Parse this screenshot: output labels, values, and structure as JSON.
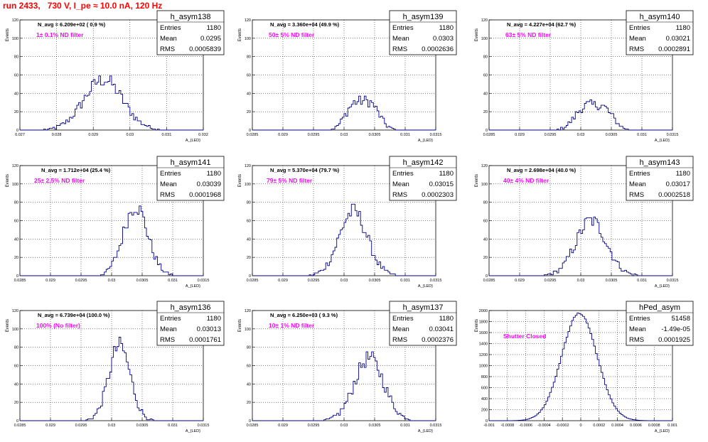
{
  "page": {
    "title": "run 2433,   730 V, I_pe ≈ 10.0 nA, 120 Hz"
  },
  "stats_labels": {
    "entries": "Entries",
    "mean": "Mean",
    "rms": "RMS"
  },
  "axis_labels": {
    "y": "Events",
    "x": "A_{LED}"
  },
  "chart_data": [
    {
      "type": "bar",
      "name": "h_asym138",
      "navg": "N_avg = 6.209e+02 ( 0.9 %)",
      "filter": "1± 0.1% ND filter",
      "entries": "1180",
      "mean": "0.0295",
      "rms": "0.0005839",
      "xlim": [
        0.027,
        0.0325
      ],
      "ylim": [
        0,
        120
      ],
      "xticks": [
        "0.027",
        "0.028",
        "0.029",
        "0.03",
        "0.031",
        "0.032"
      ],
      "yticks": [
        "0",
        "20",
        "40",
        "60",
        "80",
        "100",
        "120"
      ],
      "hmean": 0.0295,
      "hsigma": 0.00058,
      "hpeak": 55,
      "hcount": 1180,
      "bimodal": false
    },
    {
      "type": "bar",
      "name": "h_asym139",
      "navg": "N_avg = 3.360e+04 (49.9 %)",
      "filter": "50± 5% ND filter",
      "entries": "1180",
      "mean": "0.0303",
      "rms": "0.0002636",
      "xlim": [
        0.0285,
        0.0315
      ],
      "ylim": [
        0,
        120
      ],
      "xticks": [
        "0.0285",
        "0.029",
        "0.0295",
        "0.03",
        "0.0305",
        "0.031",
        "0.0315"
      ],
      "yticks": [
        "0",
        "20",
        "40",
        "60",
        "80",
        "100",
        "120"
      ],
      "hmean": 0.0303,
      "hsigma": 0.00026,
      "hpeak": 52,
      "hcount": 1180,
      "bimodal": true
    },
    {
      "type": "bar",
      "name": "h_asym140",
      "navg": "N_avg = 4.227e+04 (62.7 %)",
      "filter": "63± 5% ND filter",
      "entries": "1180",
      "mean": "0.03021",
      "rms": "0.0002891",
      "xlim": [
        0.0285,
        0.0315
      ],
      "ylim": [
        0,
        120
      ],
      "xticks": [
        "0.0285",
        "0.029",
        "0.0295",
        "0.03",
        "0.0305",
        "0.031",
        "0.0315"
      ],
      "yticks": [
        "0",
        "20",
        "40",
        "60",
        "80",
        "100",
        "120"
      ],
      "hmean": 0.03021,
      "hsigma": 0.00029,
      "hpeak": 45,
      "hcount": 1180,
      "bimodal": true
    },
    {
      "type": "bar",
      "name": "h_asym141",
      "navg": "N_avg = 1.712e+04 (25.4 %)",
      "filter": "25± 2.5% ND filter",
      "entries": "1180",
      "mean": "0.03039",
      "rms": "0.0001968",
      "xlim": [
        0.0285,
        0.0315
      ],
      "ylim": [
        0,
        120
      ],
      "xticks": [
        "0.0285",
        "0.029",
        "0.0295",
        "0.03",
        "0.0305",
        "0.031",
        "0.0315"
      ],
      "yticks": [
        "0",
        "20",
        "40",
        "60",
        "80",
        "100",
        "120"
      ],
      "hmean": 0.03039,
      "hsigma": 0.0002,
      "hpeak": 76,
      "hcount": 1180,
      "bimodal": false
    },
    {
      "type": "bar",
      "name": "h_asym142",
      "navg": "N_avg = 5.370e+04 (79.7 %)",
      "filter": "79± 5% ND filter",
      "entries": "1180",
      "mean": "0.03015",
      "rms": "0.0002303",
      "xlim": [
        0.0285,
        0.0315
      ],
      "ylim": [
        0,
        120
      ],
      "xticks": [
        "0.0285",
        "0.029",
        "0.0295",
        "0.03",
        "0.0305",
        "0.031",
        "0.0315"
      ],
      "yticks": [
        "0",
        "20",
        "40",
        "60",
        "80",
        "100",
        "120"
      ],
      "hmean": 0.03015,
      "hsigma": 0.00023,
      "hpeak": 70,
      "hcount": 1180,
      "bimodal": false
    },
    {
      "type": "bar",
      "name": "h_asym143",
      "navg": "N_avg = 2.698e+04 (40.0 %)",
      "filter": "40± 4% ND filter",
      "entries": "1180",
      "mean": "0.03017",
      "rms": "0.0002518",
      "xlim": [
        0.0285,
        0.0315
      ],
      "ylim": [
        0,
        120
      ],
      "xticks": [
        "0.0285",
        "0.029",
        "0.0295",
        "0.03",
        "0.0305",
        "0.031",
        "0.0315"
      ],
      "yticks": [
        "0",
        "20",
        "40",
        "60",
        "80",
        "100",
        "120"
      ],
      "hmean": 0.03017,
      "hsigma": 0.00025,
      "hpeak": 60,
      "hcount": 1180,
      "bimodal": false
    },
    {
      "type": "bar",
      "name": "h_asym136",
      "navg": "N_avg = 6.739e+04 (100.0 %)",
      "filter": "100% (No filter)",
      "entries": "1180",
      "mean": "0.03013",
      "rms": "0.0001761",
      "xlim": [
        0.0285,
        0.0315
      ],
      "ylim": [
        0,
        120
      ],
      "xticks": [
        "0.0285",
        "0.029",
        "0.0295",
        "0.03",
        "0.0305",
        "0.031",
        "0.0315"
      ],
      "yticks": [
        "0",
        "20",
        "40",
        "60",
        "80",
        "100",
        "120"
      ],
      "hmean": 0.03013,
      "hsigma": 0.000176,
      "hpeak": 82,
      "hcount": 1180,
      "bimodal": false
    },
    {
      "type": "bar",
      "name": "h_asym137",
      "navg": "N_avg = 6.250e+03 ( 9.3 %)",
      "filter": "10± 1% ND filter",
      "entries": "1180",
      "mean": "0.03041",
      "rms": "0.0002376",
      "xlim": [
        0.0285,
        0.0315
      ],
      "ylim": [
        0,
        120
      ],
      "xticks": [
        "0.0285",
        "0.029",
        "0.0295",
        "0.03",
        "0.0305",
        "0.031",
        "0.0315"
      ],
      "yticks": [
        "0",
        "20",
        "40",
        "60",
        "80",
        "100",
        "120"
      ],
      "hmean": 0.03041,
      "hsigma": 0.00024,
      "hpeak": 68,
      "hcount": 1180,
      "bimodal": false
    },
    {
      "type": "bar",
      "name": "hPed_asym",
      "navg": "",
      "filter": "Shutter Closed",
      "entries": "51458",
      "mean": "-1.49e-05",
      "rms": "0.0001925",
      "xlim": [
        -0.001,
        0.001
      ],
      "ylim": [
        0,
        2000
      ],
      "xticks": [
        "-0.001",
        "-0.0008",
        "-0.0006",
        "-0.0004",
        "-0.0002",
        "0",
        "0.0002",
        "0.0004",
        "0.0006",
        "0.0008",
        "0.001"
      ],
      "yticks": [
        "0",
        "200",
        "400",
        "600",
        "800",
        "1000",
        "1200",
        "1400",
        "1600",
        "1800",
        "2000"
      ],
      "hmean": -1.49e-05,
      "hsigma": 0.000193,
      "hpeak": 1950,
      "hcount": 51458,
      "bimodal": false
    }
  ],
  "colors": {
    "title": "#ff0000",
    "line": "#00008b",
    "filter_text": "#ff00ff",
    "grid": "#000000"
  }
}
